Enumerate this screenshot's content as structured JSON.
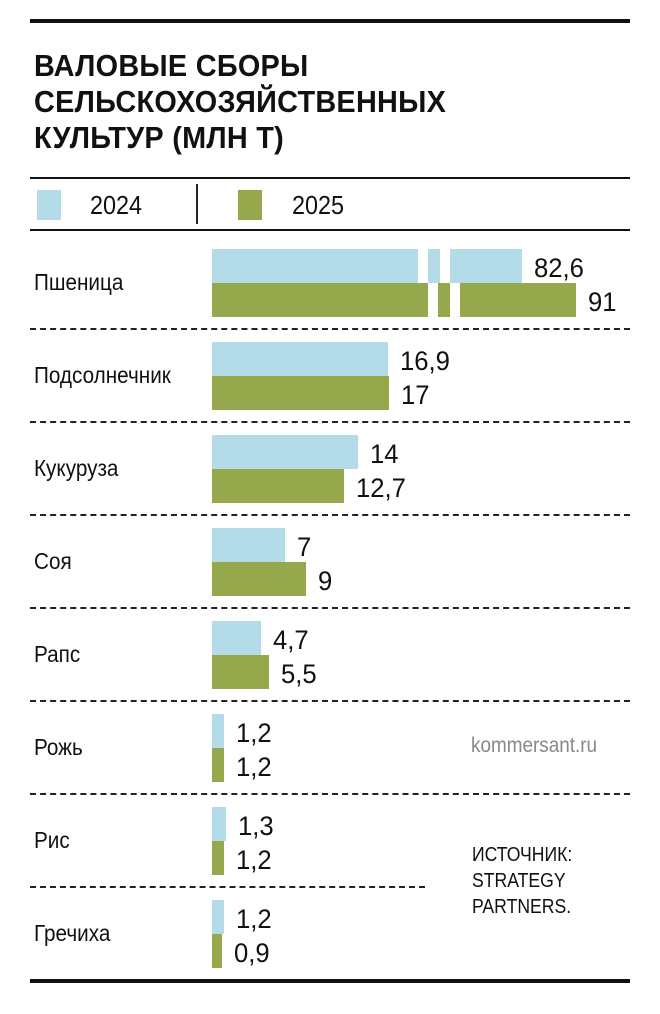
{
  "chart_data": {
    "type": "bar",
    "orientation": "horizontal",
    "title_lines": [
      "ВАЛОВЫЕ СБОРЫ",
      "СЕЛЬСКОХОЗЯЙСТВЕННЫХ",
      "КУЛЬТУР (МЛН Т)"
    ],
    "legend": [
      {
        "name": "2024",
        "color": "#b3dbe8"
      },
      {
        "name": "2025",
        "color": "#96a84c"
      }
    ],
    "categories": [
      "Пшеница",
      "Подсолнечник",
      "Кукуруза",
      "Соя",
      "Рапс",
      "Рожь",
      "Рис",
      "Гречиха"
    ],
    "series": [
      {
        "name": "2024",
        "values": [
          82.6,
          16.9,
          14,
          7,
          4.7,
          1.2,
          1.3,
          1.2
        ],
        "labels": [
          "82,6",
          "16,9",
          "14",
          "7",
          "4,7",
          "1,2",
          "1,3",
          "1,2"
        ]
      },
      {
        "name": "2025",
        "values": [
          91,
          17,
          12.7,
          9,
          5.5,
          1.2,
          1.2,
          0.9
        ],
        "labels": [
          "91",
          "17",
          "12,7",
          "9",
          "5,5",
          "1,2",
          "1,2",
          "0,9"
        ]
      }
    ],
    "axis_break": true,
    "grid": false,
    "legend_position": "top-left"
  },
  "site": "kommersant.ru",
  "source_lines": [
    "ИСТОЧНИК:",
    "STRATEGY",
    "PARTNERS."
  ]
}
